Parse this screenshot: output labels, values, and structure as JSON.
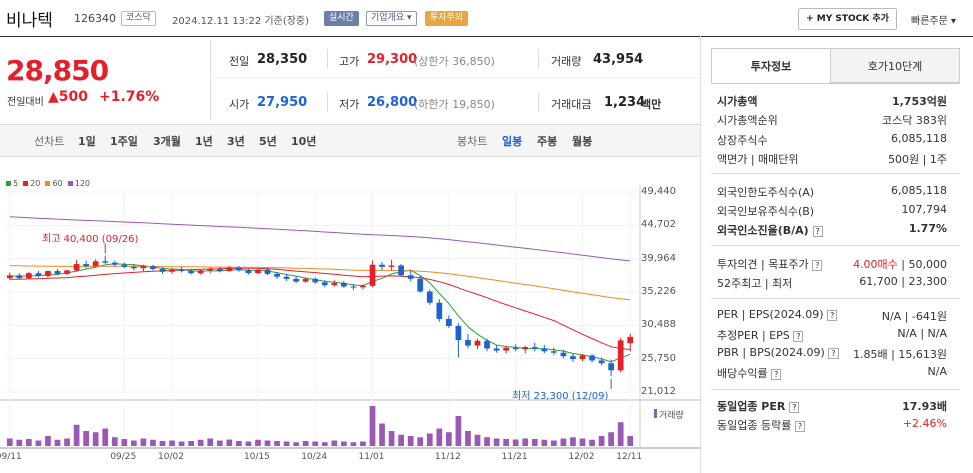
{
  "header": {
    "name": "비나텍",
    "code": "126340",
    "market": "코스닥",
    "datetime": "2024.12.11 13:22 기준(장중)",
    "realtime": "실시간",
    "overview": "기업개요 ▾",
    "warning": "투자주의",
    "my_stock": "+ MY STOCK 추가",
    "quick_order": "빠른주문"
  },
  "price": {
    "current": "28,850",
    "change_label": "전일대비",
    "change": "▲500",
    "change_pct": "+1.76%"
  },
  "quote": {
    "prev_label": "전일",
    "prev": "28,350",
    "high_label": "고가",
    "high": "29,300",
    "upper_limit": "(상한가 36,850)",
    "vol_label": "거래량",
    "vol": "43,954",
    "open_label": "시가",
    "open": "27,950",
    "low_label": "저가",
    "low": "26,800",
    "lower_limit": "(하한가 19,850)",
    "amt_label": "거래대금",
    "amt": "1,234",
    "amt_unit": "백만"
  },
  "periods": {
    "line": "선차트",
    "p1": "1일",
    "p2": "1주일",
    "p3": "3개월",
    "p4": "1년",
    "p5": "3년",
    "p6": "5년",
    "p7": "10년",
    "candle": "봉차트",
    "day": "일봉",
    "week": "주봉",
    "month": "월봉"
  },
  "legend": {
    "ma5": "5",
    "ma20": "20",
    "ma60": "60",
    "ma120": "120",
    "c5": "#2ea043",
    "c20": "#e4202a",
    "c60": "#f08a24",
    "c120": "#9b59b6"
  },
  "chart_data": {
    "type": "candlestick",
    "yticks": [
      "49,440",
      "44,702",
      "39,964",
      "35,226",
      "30,488",
      "25,750",
      "21,012"
    ],
    "ylim": [
      21012,
      49440
    ],
    "xticks": [
      "09/11",
      "09/25",
      "10/02",
      "10/15",
      "10/24",
      "11/01",
      "11/12",
      "11/21",
      "12/02",
      "12/11"
    ],
    "high_label": "최고 40,400 (09/26)",
    "low_label": "최저 23,300 (12/09)",
    "volume_label": "거래량",
    "candles": [
      [
        37200,
        38000,
        36900,
        37600
      ],
      [
        37600,
        37900,
        37000,
        37200
      ],
      [
        37200,
        38100,
        37000,
        37900
      ],
      [
        37900,
        38200,
        37300,
        37500
      ],
      [
        37500,
        38300,
        37300,
        38200
      ],
      [
        38200,
        38500,
        37700,
        37800
      ],
      [
        37800,
        38400,
        37600,
        38300
      ],
      [
        38300,
        39800,
        38100,
        39200
      ],
      [
        39200,
        39700,
        38600,
        38900
      ],
      [
        38900,
        39900,
        38700,
        39600
      ],
      [
        39600,
        40400,
        39200,
        39400
      ],
      [
        39400,
        39700,
        38900,
        39100
      ],
      [
        39100,
        39400,
        38600,
        38800
      ],
      [
        38800,
        39200,
        38300,
        38600
      ],
      [
        38600,
        39100,
        38200,
        38900
      ],
      [
        38900,
        39100,
        38300,
        38500
      ],
      [
        38500,
        38800,
        37800,
        38100
      ],
      [
        38100,
        38600,
        37800,
        38400
      ],
      [
        38400,
        38800,
        38000,
        38200
      ],
      [
        38200,
        38500,
        37700,
        37900
      ],
      [
        37900,
        38400,
        37700,
        38300
      ],
      [
        38300,
        38700,
        37900,
        38500
      ],
      [
        38500,
        38800,
        38000,
        38200
      ],
      [
        38200,
        38900,
        38100,
        38700
      ],
      [
        38700,
        38900,
        38100,
        38300
      ],
      [
        38300,
        38500,
        37700,
        37900
      ],
      [
        37900,
        38600,
        37800,
        38400
      ],
      [
        38400,
        38700,
        37600,
        37800
      ],
      [
        37800,
        38100,
        37100,
        37400
      ],
      [
        37400,
        37800,
        36800,
        37100
      ],
      [
        37100,
        37500,
        36500,
        36700
      ],
      [
        36700,
        37300,
        36500,
        37100
      ],
      [
        37100,
        37300,
        36400,
        36600
      ],
      [
        36600,
        36900,
        35900,
        36200
      ],
      [
        36200,
        36900,
        36000,
        36500
      ],
      [
        36500,
        36800,
        35800,
        36000
      ],
      [
        36000,
        36400,
        35500,
        35900
      ],
      [
        35900,
        36300,
        35600,
        36100
      ],
      [
        36100,
        39700,
        35900,
        39100
      ],
      [
        39100,
        39500,
        38300,
        38800
      ],
      [
        38800,
        39800,
        38300,
        39000
      ],
      [
        39000,
        39200,
        37400,
        37600
      ],
      [
        37600,
        38300,
        36700,
        37100
      ],
      [
        37100,
        37500,
        35100,
        35300
      ],
      [
        35300,
        35600,
        33400,
        33700
      ],
      [
        33700,
        34200,
        31000,
        31400
      ],
      [
        31400,
        31900,
        30100,
        30400
      ],
      [
        30400,
        30800,
        25900,
        28400
      ],
      [
        28400,
        29300,
        27200,
        27600
      ],
      [
        27600,
        28600,
        27100,
        28300
      ],
      [
        28300,
        28600,
        26800,
        27200
      ],
      [
        27200,
        27600,
        26600,
        26900
      ],
      [
        26900,
        27600,
        26500,
        27300
      ],
      [
        27300,
        27800,
        26800,
        27100
      ],
      [
        27100,
        27600,
        26500,
        27400
      ],
      [
        27400,
        28000,
        26800,
        27200
      ],
      [
        27200,
        27700,
        26500,
        26800
      ],
      [
        26800,
        27300,
        26300,
        26600
      ],
      [
        26600,
        27000,
        25800,
        26100
      ],
      [
        26100,
        26500,
        25300,
        25700
      ],
      [
        25700,
        26400,
        25400,
        26200
      ],
      [
        26200,
        26400,
        25200,
        25500
      ],
      [
        25500,
        25900,
        24800,
        25100
      ],
      [
        25100,
        25600,
        23300,
        24100
      ],
      [
        24100,
        28700,
        23800,
        28350
      ],
      [
        27950,
        29300,
        26800,
        28850
      ]
    ],
    "volumes": [
      30,
      25,
      28,
      22,
      40,
      25,
      30,
      85,
      60,
      55,
      70,
      35,
      28,
      22,
      30,
      25,
      20,
      22,
      18,
      20,
      25,
      30,
      22,
      26,
      20,
      18,
      25,
      22,
      20,
      18,
      15,
      20,
      18,
      15,
      22,
      18,
      15,
      18,
      160,
      90,
      60,
      45,
      40,
      35,
      50,
      70,
      55,
      120,
      60,
      45,
      35,
      30,
      28,
      26,
      30,
      28,
      25,
      22,
      30,
      35,
      30,
      25,
      40,
      55,
      95,
      40
    ]
  },
  "info": {
    "tab1": "투자정보",
    "tab2": "호가10단계",
    "r1k": "시가총액",
    "r1v": "1,753억원",
    "r2k": "시가총액순위",
    "r2v": "코스닥 383위",
    "r3k": "상장주식수",
    "r3v": "6,085,118",
    "r4k": "액면가 | 매매단위",
    "r4v": "500원 | 1주",
    "r5k": "외국인한도주식수(A)",
    "r5v": "6,085,118",
    "r6k": "외국인보유주식수(B)",
    "r6v": "107,794",
    "r7k": "외국인소진율(B/A)",
    "r7v": "1.77%",
    "r8k": "투자의견 | 목표주가",
    "r8v1": "4.00매수",
    "r8v2": "50,000",
    "r9k": "52주최고 | 최저",
    "r9v1": "61,700",
    "r9v2": "23,300",
    "r10k": "PER | EPS(2024.09)",
    "r10v1": "N/A",
    "r10v2": "-641원",
    "r11k": "추정PER | EPS",
    "r11v1": "N/A",
    "r11v2": "N/A",
    "r12k": "PBR | BPS(2024.09)",
    "r12v1": "1.85배",
    "r12v2": "15,613원",
    "r13k": "배당수익률",
    "r13v": "N/A",
    "r14k": "동일업종 PER",
    "r14v": "17.93배",
    "r15k": "동일업종 등락률",
    "r15v": "+2.46%"
  }
}
